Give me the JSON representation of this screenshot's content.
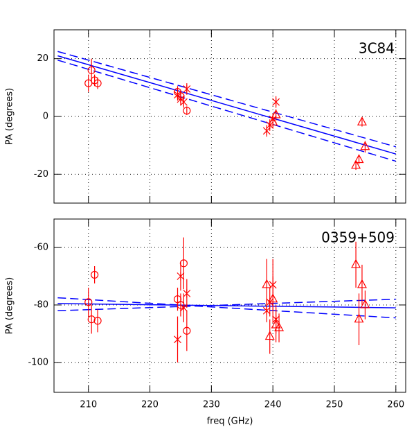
{
  "chart_data": [
    {
      "type": "scatter",
      "annotation": "3C84",
      "ylabel": "PA (degrees)",
      "xlim": [
        204.4,
        261.6
      ],
      "ylim": [
        -30,
        30
      ],
      "xticks": [
        210,
        220,
        230,
        240,
        250,
        260
      ],
      "yticks": [
        -20,
        0,
        20
      ],
      "grid": true,
      "series": [
        {
          "marker": "circle",
          "color": "#ff0000",
          "x": [
            210,
            210.5,
            211,
            211.5,
            224.5,
            225,
            226
          ],
          "values": [
            11.5,
            16,
            12.5,
            11.5,
            8.5,
            7,
            2
          ],
          "yerr": [
            3,
            4,
            2,
            2,
            2,
            2,
            1.5
          ]
        },
        {
          "marker": "star",
          "color": "#ff0000",
          "x": [
            224.5,
            225,
            225.5,
            226,
            239,
            239.5,
            240,
            240.5
          ],
          "values": [
            7.5,
            6,
            5,
            9.5,
            -5,
            -3,
            -1,
            5
          ],
          "yerr": [
            2,
            2,
            2,
            2,
            2,
            2,
            2,
            2
          ]
        },
        {
          "marker": "triangle",
          "color": "#ff0000",
          "x": [
            240,
            240.5,
            253.5,
            254,
            254.5,
            255
          ],
          "values": [
            -2,
            0.5,
            -17,
            -15,
            -2,
            -10.5
          ],
          "yerr": [
            2,
            2,
            1.5,
            1.5,
            1.5,
            2
          ]
        }
      ],
      "fits": [
        {
          "color": "#0000ff",
          "dashed": false,
          "x": [
            205,
            260
          ],
          "values": [
            21,
            -13
          ]
        },
        {
          "color": "#0000ff",
          "dashed": true,
          "x": [
            205,
            260
          ],
          "values": [
            22.5,
            -10.5
          ]
        },
        {
          "color": "#0000ff",
          "dashed": true,
          "x": [
            205,
            260
          ],
          "values": [
            19.5,
            -15.5
          ]
        }
      ]
    },
    {
      "type": "scatter",
      "annotation": "0359+509",
      "ylabel": "PA (degrees)",
      "xlabel": "freq (GHz)",
      "xlim": [
        204.4,
        261.6
      ],
      "ylim": [
        -110.4,
        -50.1
      ],
      "xticks": [
        210,
        220,
        230,
        240,
        250,
        260
      ],
      "yticks": [
        -100,
        -80,
        -60
      ],
      "grid": true,
      "series": [
        {
          "marker": "circle",
          "color": "#ff0000",
          "x": [
            210,
            210.5,
            211,
            211.5,
            224.5,
            225,
            225.5,
            226
          ],
          "values": [
            -79,
            -85,
            -69.5,
            -85.5,
            -78,
            -80,
            -65.5,
            -89
          ],
          "yerr": [
            5,
            5,
            3,
            4,
            4,
            4,
            9,
            7
          ]
        },
        {
          "marker": "star",
          "color": "#ff0000",
          "x": [
            224.5,
            225,
            225.5,
            226,
            239,
            239.5,
            240,
            240.5
          ],
          "values": [
            -92,
            -70,
            -81,
            -76,
            -82,
            -79,
            -73,
            -85
          ],
          "yerr": [
            8,
            5,
            5,
            5,
            4,
            5,
            9,
            5
          ]
        },
        {
          "marker": "triangle",
          "color": "#ff0000",
          "x": [
            239,
            239.5,
            240,
            240.5,
            241,
            253.5,
            254,
            254.5,
            255
          ],
          "values": [
            -73,
            -91,
            -78,
            -87,
            -88,
            -66,
            -85,
            -73,
            -80
          ],
          "yerr": [
            9,
            6,
            8,
            6,
            5,
            8,
            9,
            7,
            5
          ]
        }
      ],
      "fits": [
        {
          "color": "#0000ff",
          "dashed": false,
          "x": [
            205,
            260
          ],
          "values": [
            -79.5,
            -81
          ]
        },
        {
          "color": "#0000ff",
          "dashed": true,
          "x": [
            205,
            260
          ],
          "values": [
            -77.5,
            -84.5
          ]
        },
        {
          "color": "#0000ff",
          "dashed": true,
          "x": [
            205,
            260
          ],
          "values": [
            -82,
            -78
          ]
        }
      ]
    }
  ]
}
